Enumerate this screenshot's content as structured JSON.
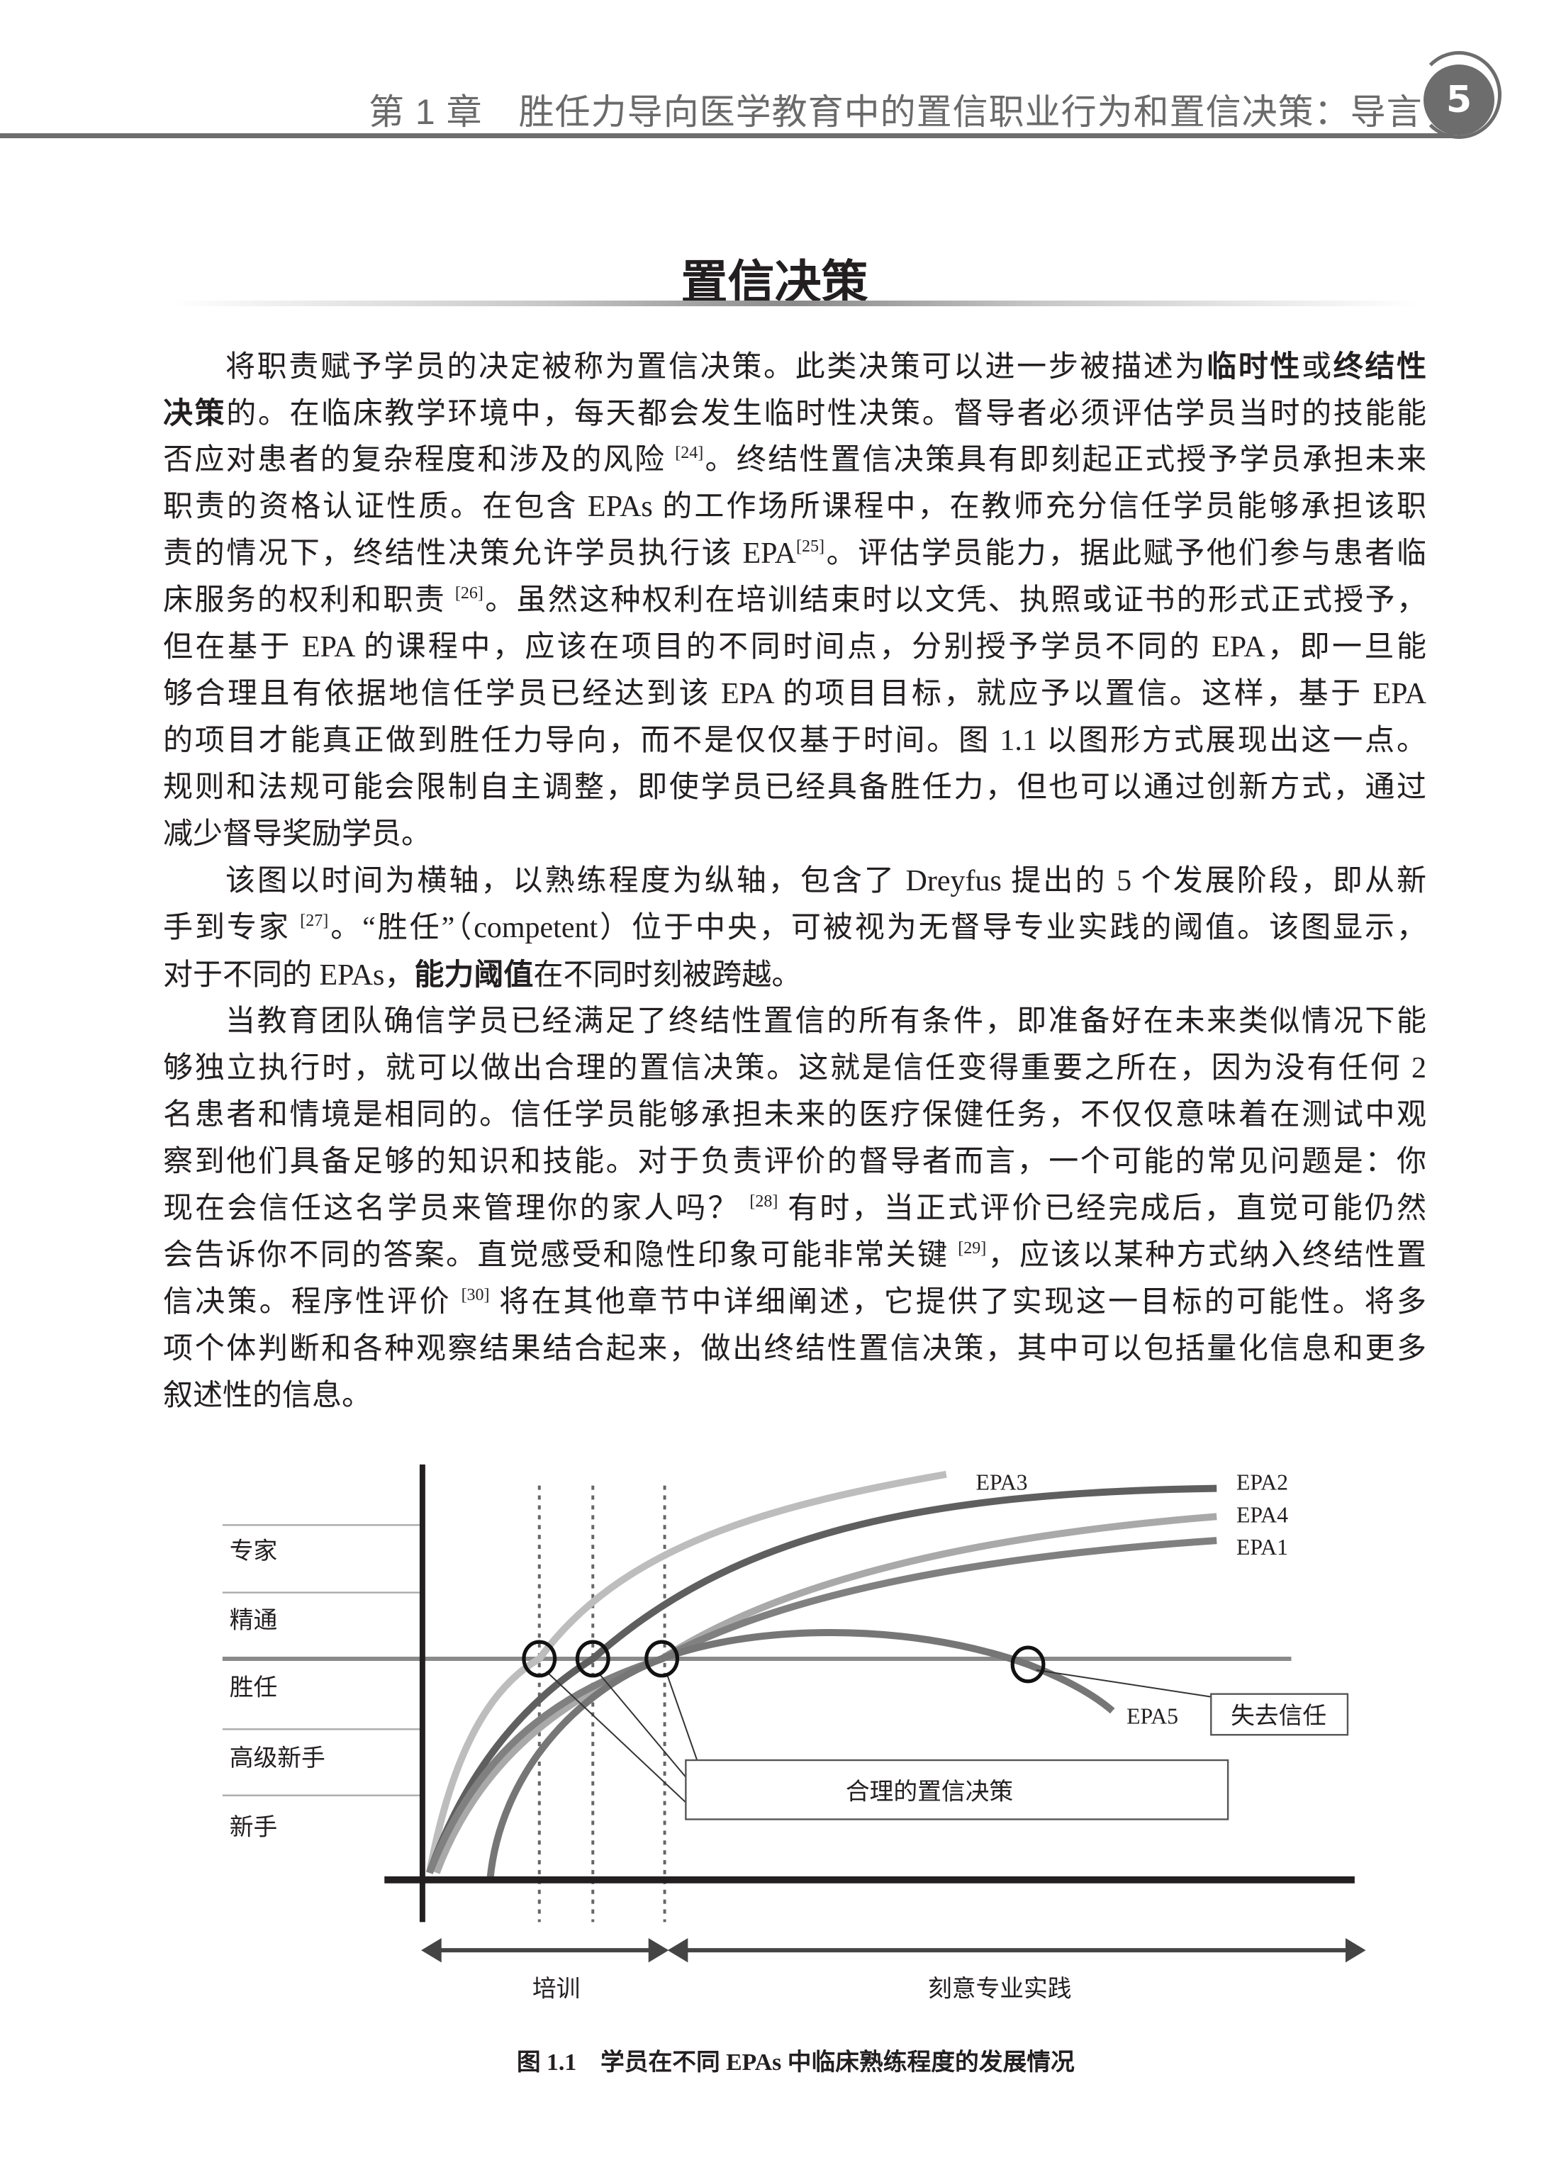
{
  "header": {
    "running_title": "第 1 章　胜任力导向医学教育中的置信职业行为和置信决策：导言",
    "page_number": "5"
  },
  "section_title": "置信决策",
  "body": {
    "lines": [
      [
        [
          "将职责赋予学员的决定被称为置信决策。此类决策可以进一步被描述为",
          ""
        ],
        [
          "临时性",
          "b"
        ],
        [
          "或",
          ""
        ],
        [
          "终结性",
          "b"
        ]
      ],
      [
        [
          "决策",
          "b"
        ],
        [
          "的。在临床教学环境中，每天都会发生临时性决策。督导者必须评估学员当时的技能能",
          ""
        ]
      ],
      [
        [
          "否应对患者的复杂程度和涉及的风险 ",
          ""
        ],
        [
          "[24]",
          "sup"
        ],
        [
          "。终结性置信决策具有即刻起正式授予学员承担未来",
          ""
        ]
      ],
      [
        [
          "职责的资格认证性质。在包含 EPAs 的工作场所课程中，在教师充分信任学员能够承担该职",
          ""
        ]
      ],
      [
        [
          "责的情况下，终结性决策允许学员执行该 EPA",
          ""
        ],
        [
          "[25]",
          "sup"
        ],
        [
          "。评估学员能力，据此赋予他们参与患者临",
          ""
        ]
      ],
      [
        [
          "床服务的权利和职责 ",
          ""
        ],
        [
          "[26]",
          "sup"
        ],
        [
          "。虽然这种权利在培训结束时以文凭、执照或证书的形式正式授予，",
          ""
        ]
      ],
      [
        [
          "但在基于 EPA 的课程中，应该在项目的不同时间点，分别授予学员不同的 EPA，即一旦能",
          ""
        ]
      ],
      [
        [
          "够合理且有依据地信任学员已经达到该 EPA 的项目目标，就应予以置信。这样，基于 EPA",
          ""
        ]
      ],
      [
        [
          "的项目才能真正做到胜任力导向，而不是仅仅基于时间。图 1.1 以图形方式展现出这一点。",
          ""
        ]
      ],
      [
        [
          "规则和法规可能会限制自主调整，即使学员已经具备胜任力，但也可以通过创新方式，通过",
          ""
        ]
      ],
      [
        [
          "减少督导奖励学员。",
          ""
        ]
      ],
      [
        [
          "该图以时间为横轴，以熟练程度为纵轴，包含了 Dreyfus 提出的 5 个发展阶段，即从新",
          ""
        ]
      ],
      [
        [
          "手到专家 ",
          ""
        ],
        [
          "[27]",
          "sup"
        ],
        [
          "。“胜任”（competent）位于中央，可被视为无督导专业实践的阈值。该图显示，",
          ""
        ]
      ],
      [
        [
          "对于不同的 EPAs，",
          ""
        ],
        [
          "能力阈值",
          "b"
        ],
        [
          "在不同时刻被跨越。",
          ""
        ]
      ],
      [
        [
          "当教育团队确信学员已经满足了终结性置信的所有条件，即准备好在未来类似情况下能",
          ""
        ]
      ],
      [
        [
          "够独立执行时，就可以做出合理的置信决策。这就是信任变得重要之所在，因为没有任何 2",
          ""
        ]
      ],
      [
        [
          "名患者和情境是相同的。信任学员能够承担未来的医疗保健任务，不仅仅意味着在测试中观",
          ""
        ]
      ],
      [
        [
          "察到他们具备足够的知识和技能。对于负责评价的督导者而言，一个可能的常见问题是：你",
          ""
        ]
      ],
      [
        [
          "现在会信任这名学员来管理你的家人吗？ ",
          ""
        ],
        [
          "[28]",
          "sup"
        ],
        [
          " 有时，当正式评价已经完成后，直觉可能仍然",
          ""
        ]
      ],
      [
        [
          "会告诉你不同的答案。直觉感受和隐性印象可能非常关键 ",
          ""
        ],
        [
          "[29]",
          "sup"
        ],
        [
          "，应该以某种方式纳入终结性置",
          ""
        ]
      ],
      [
        [
          "信决策。程序性评价 ",
          ""
        ],
        [
          "[30]",
          "sup"
        ],
        [
          " 将在其他章节中详细阐述，它提供了实现这一目标的可能性。将多",
          ""
        ]
      ],
      [
        [
          "项个体判断和各种观察结果结合起来，做出终结性置信决策，其中可以包括量化信息和更多",
          ""
        ]
      ],
      [
        [
          "叙述性的信息。",
          ""
        ]
      ]
    ],
    "indent_lines": [
      0,
      11,
      14
    ],
    "last_lines": [
      10,
      13,
      22
    ]
  },
  "figure": {
    "levels": [
      "专家",
      "精通",
      "胜任",
      "高级新手",
      "新手"
    ],
    "series": [
      {
        "name": "EPA3",
        "color": "#bdbdbd"
      },
      {
        "name": "EPA2",
        "color": "#5f5f5f"
      },
      {
        "name": "EPA4",
        "color": "#a9a9a9"
      },
      {
        "name": "EPA1",
        "color": "#808080"
      },
      {
        "name": "EPA5",
        "color": "#767676"
      }
    ],
    "decision_label": "合理的置信决策",
    "lost_trust_label": "失去信任",
    "phase_training": "培训",
    "phase_practice": "刻意专业实践",
    "caption": "图 1.1　学员在不同 EPAs 中临床熟练程度的发展情况"
  }
}
